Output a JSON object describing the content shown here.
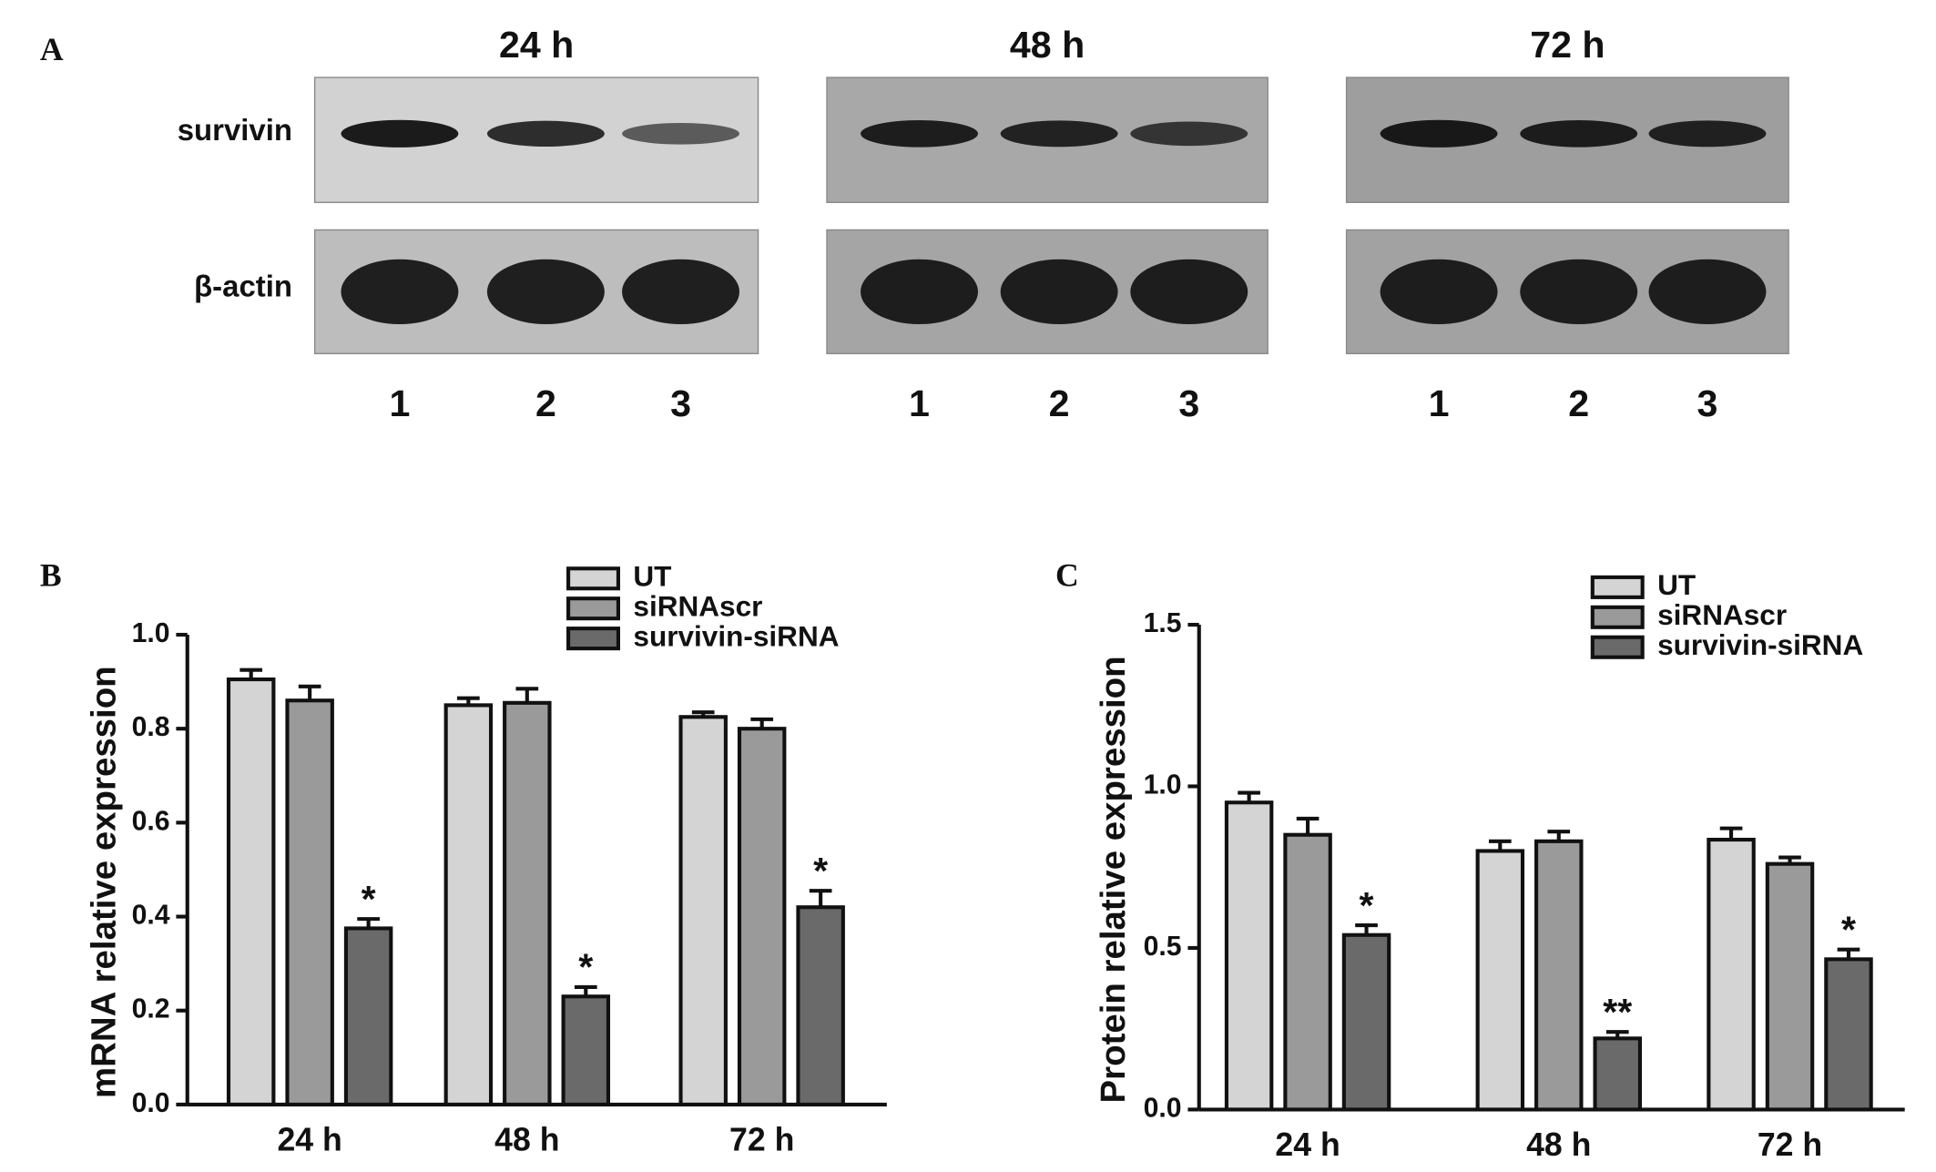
{
  "blot": {
    "label": "A",
    "times": [
      "24 h",
      "48 h",
      "72 h"
    ],
    "rows": [
      "survivin",
      "β-actin"
    ],
    "lanes": [
      "1",
      "2",
      "3"
    ]
  },
  "chart_data": [
    {
      "type": "bar",
      "panel": "B",
      "y_label": "mRNA relative expression",
      "categories": [
        "24 h",
        "48 h",
        "72 h"
      ],
      "series": [
        {
          "name": "UT",
          "color": "#d4d4d4",
          "values": [
            0.905,
            0.85,
            0.825
          ],
          "errors": [
            0.02,
            0.015,
            0.01
          ]
        },
        {
          "name": "siRNAscr",
          "color": "#9a9a9a",
          "values": [
            0.86,
            0.855,
            0.8
          ],
          "errors": [
            0.03,
            0.03,
            0.02
          ]
        },
        {
          "name": "survivin-siRNA",
          "color": "#6a6a6a",
          "values": [
            0.375,
            0.23,
            0.42
          ],
          "errors": [
            0.02,
            0.02,
            0.035
          ]
        }
      ],
      "annotations": [
        "*",
        "*",
        "*"
      ],
      "ylim": [
        0,
        1
      ],
      "yticks": [
        {
          "value": 0,
          "label": "0.0"
        },
        0.2,
        0.4,
        0.6,
        0.8,
        {
          "value": 1,
          "label": "1.0"
        }
      ],
      "legend": "top-right"
    },
    {
      "type": "bar",
      "panel": "C",
      "y_label": "Protein relative expression",
      "categories": [
        "24 h",
        "48 h",
        "72 h"
      ],
      "series": [
        {
          "name": "UT",
          "color": "#d4d4d4",
          "values": [
            0.95,
            0.8,
            0.835
          ],
          "errors": [
            0.03,
            0.03,
            0.035
          ]
        },
        {
          "name": "siRNAscr",
          "color": "#9a9a9a",
          "values": [
            0.85,
            0.83,
            0.76
          ],
          "errors": [
            0.05,
            0.03,
            0.02
          ]
        },
        {
          "name": "survivin-siRNA",
          "color": "#6a6a6a",
          "values": [
            0.54,
            0.22,
            0.465
          ],
          "errors": [
            0.03,
            0.02,
            0.03
          ]
        }
      ],
      "annotations": [
        "*",
        "**",
        "*"
      ],
      "ylim": [
        0,
        1.5
      ],
      "yticks": [
        {
          "value": 0,
          "label": "0.0"
        },
        0.5,
        {
          "value": 1,
          "label": "1.0"
        },
        1.5
      ],
      "legend": "top-right"
    }
  ]
}
